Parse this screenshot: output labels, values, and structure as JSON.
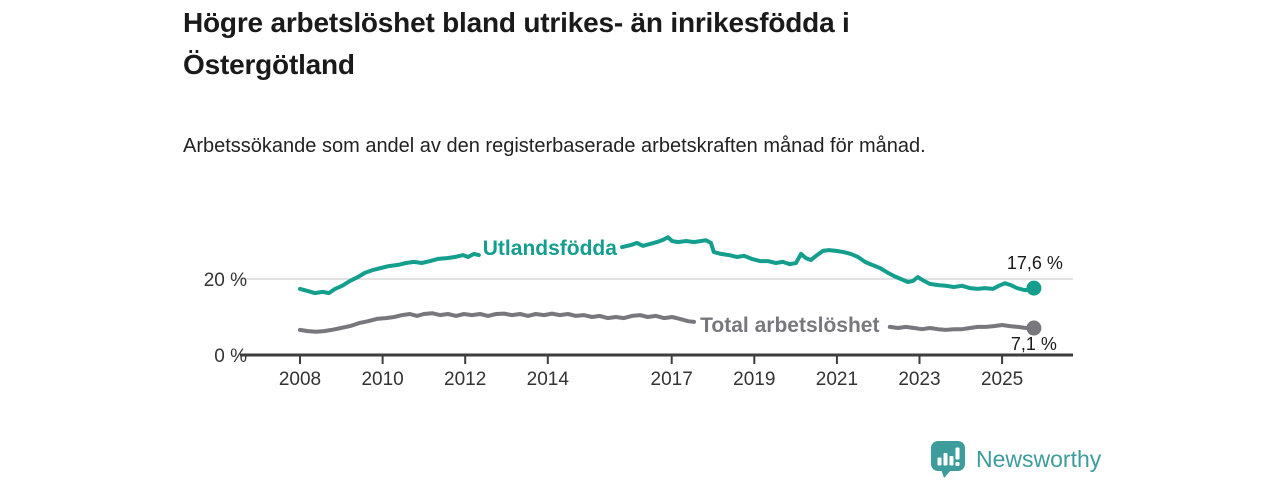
{
  "header": {
    "title": "Högre arbetslöshet bland utrikes- än inrikesfödda i Östergötland",
    "subtitle": "Arbetssökande som andel av den registerbaserade arbetskraften månad för månad."
  },
  "branding": {
    "logo_text": "Newsworthy",
    "logo_icon": "bar-chart-speech-bubble-icon",
    "brand_color": "#3e9c9c"
  },
  "colors": {
    "foreign_born_line": "#149e8d",
    "total_line": "#77777d",
    "axis": "#3d3d3d",
    "gridline": "#d8d8d8",
    "tick_text": "#333333",
    "end_label_text": "#1a1a1a"
  },
  "chart_data": {
    "type": "line",
    "title": "Högre arbetslöshet bland utrikes- än inrikesfödda i Östergötland",
    "subtitle": "Arbetssökande som andel av den registerbaserade arbetskraften månad för månad.",
    "xlabel": "",
    "ylabel": "",
    "x_axis": {
      "ticks": [
        2008,
        2010,
        2012,
        2014,
        2017,
        2019,
        2021,
        2023,
        2025
      ],
      "tick_labels": [
        "2008",
        "2010",
        "2012",
        "2014",
        "2017",
        "2019",
        "2021",
        "2023",
        "2025"
      ],
      "range": [
        2006.55,
        2026.7
      ]
    },
    "y_axis": {
      "ticks": [
        {
          "value": 0,
          "label": "0 %"
        },
        {
          "value": 20,
          "label": "20 %"
        }
      ],
      "range": [
        0,
        33
      ],
      "unit": "%"
    },
    "legend_position": "inline-labels",
    "grid": "horizontal-20-only",
    "series": [
      {
        "name": "Utlandsfödda",
        "color": "#149e8d",
        "end_label": "17,6 %",
        "last_value": 17.6,
        "inline_label": {
          "text": "Utlandsfödda",
          "x": 2014.05,
          "y": 28.2
        },
        "end_label_offset": {
          "dx": 29,
          "dy": -19
        },
        "segments": [
          [
            [
              2008.0,
              17.4
            ],
            [
              2008.2,
              16.8
            ],
            [
              2008.36,
              16.3
            ],
            [
              2008.55,
              16.6
            ],
            [
              2008.7,
              16.3
            ],
            [
              2008.85,
              17.4
            ],
            [
              2009.02,
              18.2
            ],
            [
              2009.21,
              19.5
            ],
            [
              2009.4,
              20.5
            ],
            [
              2009.57,
              21.6
            ],
            [
              2009.77,
              22.4
            ],
            [
              2009.96,
              22.9
            ],
            [
              2010.15,
              23.4
            ],
            [
              2010.37,
              23.7
            ],
            [
              2010.57,
              24.2
            ],
            [
              2010.76,
              24.5
            ],
            [
              2010.95,
              24.2
            ],
            [
              2011.15,
              24.7
            ],
            [
              2011.34,
              25.3
            ],
            [
              2011.56,
              25.5
            ],
            [
              2011.75,
              25.8
            ],
            [
              2011.95,
              26.3
            ],
            [
              2012.07,
              25.8
            ],
            [
              2012.21,
              26.6
            ],
            [
              2012.33,
              26.3
            ]
          ],
          [
            [
              2015.8,
              28.4
            ],
            [
              2016.0,
              28.9
            ],
            [
              2016.16,
              29.5
            ],
            [
              2016.3,
              28.7
            ],
            [
              2016.47,
              29.2
            ],
            [
              2016.64,
              29.7
            ],
            [
              2016.79,
              30.3
            ],
            [
              2016.91,
              31.0
            ],
            [
              2017.01,
              30.0
            ],
            [
              2017.15,
              29.7
            ],
            [
              2017.35,
              30.0
            ],
            [
              2017.54,
              29.7
            ],
            [
              2017.71,
              30.0
            ],
            [
              2017.83,
              30.2
            ],
            [
              2017.95,
              29.5
            ],
            [
              2018.02,
              27.1
            ],
            [
              2018.19,
              26.6
            ],
            [
              2018.39,
              26.3
            ],
            [
              2018.58,
              25.8
            ],
            [
              2018.75,
              26.1
            ],
            [
              2018.94,
              25.3
            ],
            [
              2019.14,
              24.7
            ],
            [
              2019.33,
              24.7
            ],
            [
              2019.52,
              24.2
            ],
            [
              2019.69,
              24.5
            ],
            [
              2019.86,
              23.9
            ],
            [
              2020.01,
              24.2
            ],
            [
              2020.13,
              26.6
            ],
            [
              2020.25,
              25.5
            ],
            [
              2020.37,
              25.0
            ],
            [
              2020.52,
              26.3
            ],
            [
              2020.66,
              27.4
            ],
            [
              2020.81,
              27.6
            ],
            [
              2020.98,
              27.4
            ],
            [
              2021.15,
              27.1
            ],
            [
              2021.34,
              26.6
            ],
            [
              2021.51,
              25.8
            ],
            [
              2021.68,
              24.5
            ],
            [
              2021.85,
              23.7
            ],
            [
              2022.04,
              22.9
            ],
            [
              2022.21,
              21.8
            ],
            [
              2022.38,
              20.8
            ],
            [
              2022.55,
              20.0
            ],
            [
              2022.72,
              19.2
            ],
            [
              2022.84,
              19.5
            ],
            [
              2022.96,
              20.5
            ],
            [
              2023.11,
              19.5
            ],
            [
              2023.25,
              18.7
            ],
            [
              2023.45,
              18.4
            ],
            [
              2023.64,
              18.2
            ],
            [
              2023.83,
              17.9
            ],
            [
              2024.03,
              18.2
            ],
            [
              2024.22,
              17.6
            ],
            [
              2024.41,
              17.4
            ],
            [
              2024.58,
              17.6
            ],
            [
              2024.78,
              17.4
            ],
            [
              2024.92,
              18.2
            ],
            [
              2025.07,
              18.9
            ],
            [
              2025.21,
              18.4
            ],
            [
              2025.36,
              17.6
            ],
            [
              2025.53,
              17.1
            ],
            [
              2025.67,
              17.1
            ],
            [
              2025.77,
              17.6
            ]
          ]
        ]
      },
      {
        "name": "Total arbetslöshet",
        "color": "#77777d",
        "end_label": "7,1 %",
        "last_value": 7.1,
        "inline_label": {
          "text": "Total arbetslöshet",
          "x": 2019.86,
          "y": 7.9
        },
        "end_label_offset": {
          "dx": 23,
          "dy": 22
        },
        "segments": [
          [
            [
              2008.0,
              6.6
            ],
            [
              2008.19,
              6.3
            ],
            [
              2008.39,
              6.1
            ],
            [
              2008.58,
              6.3
            ],
            [
              2008.77,
              6.6
            ],
            [
              2008.99,
              7.1
            ],
            [
              2009.21,
              7.6
            ],
            [
              2009.43,
              8.4
            ],
            [
              2009.65,
              8.9
            ],
            [
              2009.86,
              9.5
            ],
            [
              2010.08,
              9.7
            ],
            [
              2010.28,
              10.0
            ],
            [
              2010.47,
              10.5
            ],
            [
              2010.66,
              10.8
            ],
            [
              2010.83,
              10.3
            ],
            [
              2011.0,
              10.8
            ],
            [
              2011.2,
              11.0
            ],
            [
              2011.39,
              10.5
            ],
            [
              2011.58,
              10.8
            ],
            [
              2011.78,
              10.3
            ],
            [
              2011.97,
              10.8
            ],
            [
              2012.16,
              10.5
            ],
            [
              2012.36,
              10.8
            ],
            [
              2012.55,
              10.3
            ],
            [
              2012.75,
              10.8
            ],
            [
              2012.94,
              10.9
            ],
            [
              2013.13,
              10.5
            ],
            [
              2013.33,
              10.8
            ],
            [
              2013.52,
              10.3
            ],
            [
              2013.71,
              10.8
            ],
            [
              2013.91,
              10.5
            ],
            [
              2014.1,
              10.9
            ],
            [
              2014.29,
              10.5
            ],
            [
              2014.49,
              10.8
            ],
            [
              2014.68,
              10.3
            ],
            [
              2014.87,
              10.5
            ],
            [
              2015.07,
              10.0
            ],
            [
              2015.26,
              10.3
            ],
            [
              2015.45,
              9.7
            ],
            [
              2015.65,
              10.0
            ],
            [
              2015.84,
              9.7
            ],
            [
              2016.04,
              10.3
            ],
            [
              2016.23,
              10.5
            ],
            [
              2016.42,
              10.0
            ],
            [
              2016.62,
              10.3
            ],
            [
              2016.81,
              9.7
            ],
            [
              2017.01,
              10.0
            ],
            [
              2017.2,
              9.5
            ],
            [
              2017.4,
              8.9
            ],
            [
              2017.54,
              8.7
            ]
          ],
          [
            [
              2022.28,
              7.4
            ],
            [
              2022.48,
              7.1
            ],
            [
              2022.67,
              7.4
            ],
            [
              2022.87,
              7.1
            ],
            [
              2023.06,
              6.8
            ],
            [
              2023.25,
              7.1
            ],
            [
              2023.45,
              6.8
            ],
            [
              2023.64,
              6.6
            ],
            [
              2023.83,
              6.8
            ],
            [
              2024.03,
              6.8
            ],
            [
              2024.22,
              7.1
            ],
            [
              2024.41,
              7.4
            ],
            [
              2024.61,
              7.4
            ],
            [
              2024.8,
              7.6
            ],
            [
              2025.0,
              7.9
            ],
            [
              2025.19,
              7.6
            ],
            [
              2025.38,
              7.4
            ],
            [
              2025.58,
              7.1
            ],
            [
              2025.77,
              7.1
            ]
          ]
        ]
      }
    ]
  }
}
